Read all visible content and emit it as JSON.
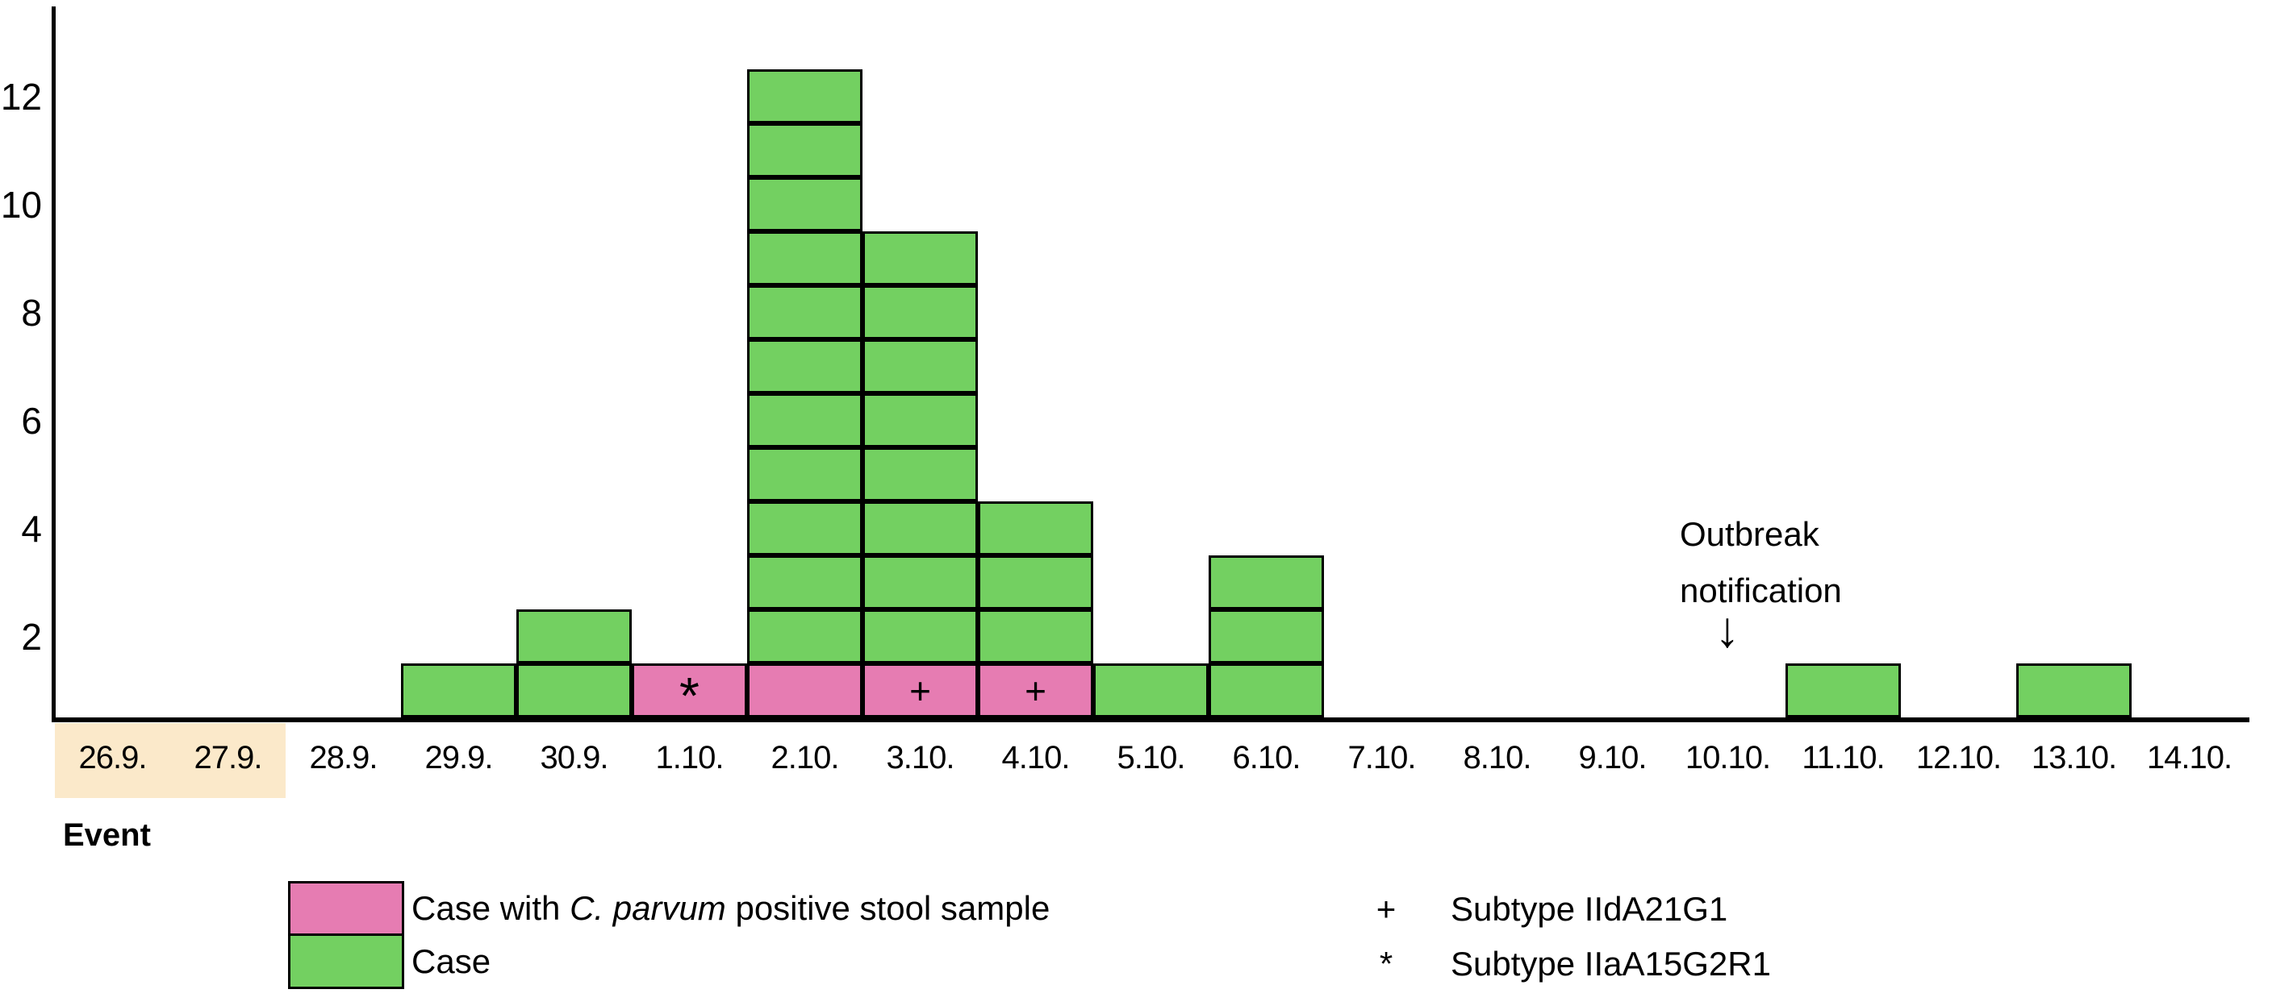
{
  "chart_data": {
    "type": "bar",
    "subtype": "epidemic-curve-stacked-unit-boxes",
    "title": "",
    "xlabel": "",
    "ylabel": "",
    "categories": [
      "26.9.",
      "27.9.",
      "28.9.",
      "29.9.",
      "30.9.",
      "1.10.",
      "2.10.",
      "3.10.",
      "4.10.",
      "5.10.",
      "6.10.",
      "7.10.",
      "8.10.",
      "9.10.",
      "10.10.",
      "11.10.",
      "12.10.",
      "13.10.",
      "14.10."
    ],
    "series": [
      {
        "name": "Case with C. parvum positive stool sample",
        "color": "#e67cb2",
        "values": [
          0,
          0,
          0,
          0,
          0,
          1,
          1,
          1,
          1,
          0,
          0,
          0,
          0,
          0,
          0,
          0,
          0,
          0,
          0
        ]
      },
      {
        "name": "Case",
        "color": "#73d061",
        "values": [
          0,
          0,
          0,
          1,
          2,
          0,
          11,
          8,
          3,
          1,
          3,
          0,
          0,
          0,
          0,
          1,
          0,
          1,
          0
        ]
      }
    ],
    "box_markers": [
      {
        "category": "1.10.",
        "symbol": "*"
      },
      {
        "category": "3.10.",
        "symbol": "+"
      },
      {
        "category": "4.10.",
        "symbol": "+"
      }
    ],
    "yticks": [
      2,
      4,
      6,
      8,
      10,
      12
    ],
    "ylim": [
      0,
      13
    ],
    "grid": false,
    "legend_position": "bottom",
    "highlight": {
      "categories": [
        "26.9.",
        "27.9."
      ],
      "color": "#fbe9ca",
      "label": "Event"
    },
    "annotation": {
      "line1": "Outbreak",
      "line2": "notification",
      "arrow": "↓",
      "category": "10.10."
    }
  },
  "axis": {
    "event_label": "Event"
  },
  "annotation": {
    "line1": "Outbreak",
    "line2": "notification",
    "arrow": "↓"
  },
  "legend": {
    "items": [
      {
        "swatch_color": "#e67cb2",
        "label_prefix": "Case with ",
        "label_italic": "C. parvum",
        "label_suffix": " positive stool sample"
      },
      {
        "swatch_color": "#73d061",
        "label": "Case"
      }
    ],
    "symbols": [
      {
        "symbol": "+",
        "label": "Subtype IIdA21G1"
      },
      {
        "symbol": "*",
        "label": "Subtype IIaA15G2R1"
      }
    ]
  },
  "colors": {
    "box_border": "#000000",
    "axis": "#000000",
    "text": "#000000"
  }
}
